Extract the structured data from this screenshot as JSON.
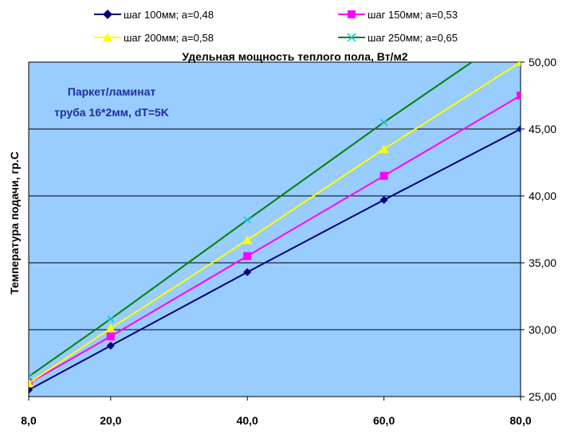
{
  "chart_data": {
    "type": "line",
    "title": "Удельная мощность теплого пола, Вт/м2",
    "ylabel": "Температура подачи, гр.С",
    "annotation": [
      "Паркет/ламинат",
      "труба 16*2мм, dT=5K"
    ],
    "x": [
      8,
      20,
      40,
      60,
      80
    ],
    "x_tick_labels": [
      "8,0",
      "20,0",
      "40,0",
      "60,0",
      "80,0"
    ],
    "y_tick_values": [
      25,
      30,
      35,
      40,
      45,
      50
    ],
    "y_tick_labels": [
      "25,00",
      "30,00",
      "35,00",
      "40,00",
      "45,00",
      "50,00"
    ],
    "ylim": [
      25,
      50
    ],
    "y_axis_position": "right",
    "grid": "horizontal",
    "legend_position": "top",
    "plot_background": "#99ccff",
    "series": [
      {
        "name": "шаг 100мм; a=0,48",
        "color": "#000080",
        "marker": "diamond",
        "values": [
          25.5,
          28.8,
          34.3,
          39.7,
          45.0
        ]
      },
      {
        "name": "шаг 150мм; a=0,53",
        "color": "#ff00ff",
        "marker": "square",
        "values": [
          26.0,
          29.5,
          35.5,
          41.5,
          47.5
        ]
      },
      {
        "name": "шаг 200мм; a=0,58",
        "color": "#ffff00",
        "marker": "triangle",
        "values": [
          26.0,
          30.1,
          36.7,
          43.5,
          50.0
        ]
      },
      {
        "name": "шаг 250мм; a=0,65",
        "color": "#008000",
        "marker": "x",
        "values": [
          26.5,
          30.8,
          38.2,
          45.5,
          52.5
        ]
      }
    ]
  }
}
